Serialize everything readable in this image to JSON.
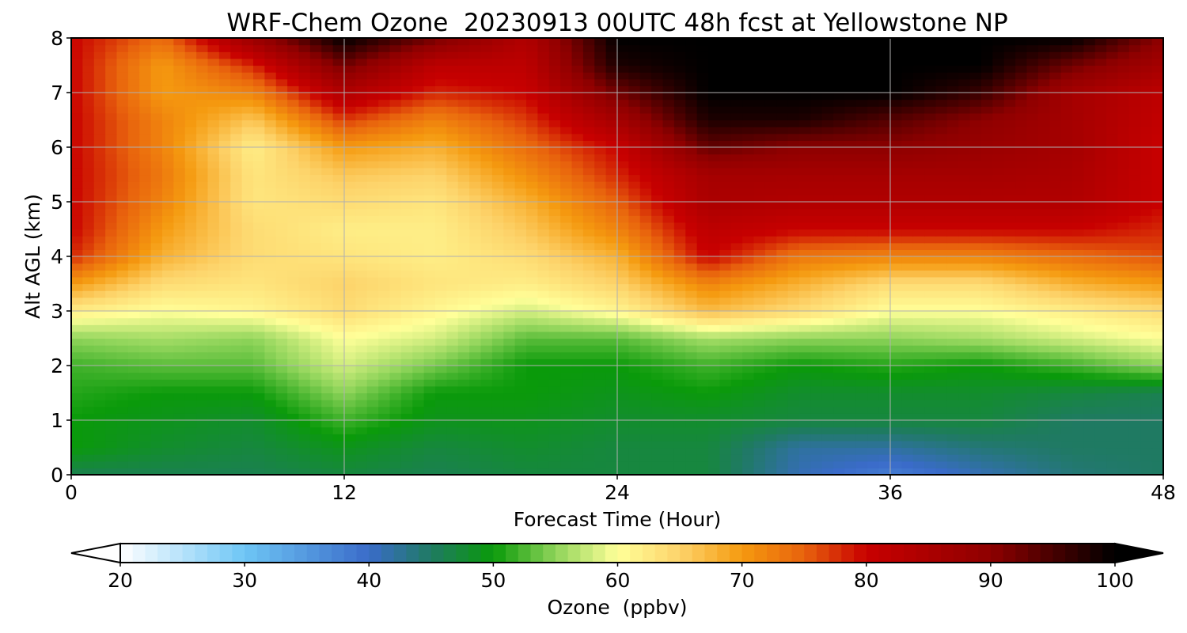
{
  "chart_data": {
    "type": "heatmap",
    "title": "WRF-Chem Ozone  20230913 00UTC 48h fcst at Yellowstone NP",
    "xlabel": "Forecast Time (Hour)",
    "ylabel": "Alt AGL (km)",
    "xlim": [
      0,
      48
    ],
    "ylim": [
      0,
      8
    ],
    "x_ticks": [
      0,
      12,
      24,
      36,
      48
    ],
    "y_ticks": [
      0,
      1,
      2,
      3,
      4,
      5,
      6,
      7,
      8
    ],
    "grid": true,
    "x": [
      0,
      4,
      8,
      12,
      16,
      20,
      24,
      28,
      32,
      36,
      40,
      44,
      48
    ],
    "y": [
      0,
      0.5,
      1,
      1.5,
      2,
      2.5,
      3,
      3.5,
      4,
      4.5,
      5,
      5.5,
      6,
      6.5,
      7,
      7.5,
      8
    ],
    "z": [
      [
        46,
        46,
        46,
        47,
        46,
        47,
        47,
        47,
        41,
        38,
        41,
        44,
        45
      ],
      [
        50,
        48,
        47,
        49,
        47,
        48,
        47,
        47,
        42,
        42,
        44,
        45,
        45
      ],
      [
        50,
        49,
        48,
        52,
        49,
        49,
        48,
        48,
        47,
        47,
        47,
        45,
        45
      ],
      [
        51,
        50,
        50,
        55,
        50,
        50,
        49,
        50,
        48,
        48,
        48,
        47,
        46
      ],
      [
        52,
        53,
        53,
        58,
        54,
        50,
        50,
        52,
        50,
        51,
        50,
        52,
        55
      ],
      [
        55,
        56,
        55,
        60,
        58,
        53,
        53,
        56,
        55,
        55,
        56,
        58,
        60
      ],
      [
        62,
        60,
        61,
        64,
        61,
        58,
        61,
        67,
        64,
        60,
        60,
        62,
        64
      ],
      [
        70,
        64,
        63,
        65,
        63,
        62,
        65,
        72,
        68,
        64,
        64,
        68,
        70
      ],
      [
        78,
        68,
        64,
        63,
        62,
        64,
        68,
        80,
        73,
        72,
        72,
        74,
        76
      ],
      [
        80,
        70,
        64,
        62,
        62,
        66,
        72,
        82,
        80,
        80,
        80,
        80,
        78
      ],
      [
        80,
        72,
        63,
        64,
        63,
        68,
        75,
        85,
        84,
        84,
        84,
        84,
        80
      ],
      [
        80,
        73,
        63,
        66,
        65,
        71,
        78,
        86,
        86,
        86,
        86,
        85,
        80
      ],
      [
        80,
        72,
        62,
        70,
        68,
        74,
        80,
        93,
        90,
        90,
        88,
        86,
        80
      ],
      [
        80,
        72,
        66,
        77,
        72,
        77,
        86,
        98,
        98,
        94,
        90,
        86,
        81
      ],
      [
        80,
        70,
        72,
        84,
        78,
        80,
        92,
        100,
        100,
        100,
        96,
        86,
        82
      ],
      [
        80,
        70,
        78,
        92,
        82,
        82,
        98,
        100,
        100,
        100,
        100,
        92,
        86
      ],
      [
        80,
        74,
        88,
        100,
        92,
        84,
        100,
        100,
        100,
        100,
        100,
        100,
        90
      ]
    ],
    "colorbar": {
      "label": "Ozone  (ppbv)",
      "min": 20,
      "max": 100,
      "ticks": [
        20,
        30,
        40,
        50,
        60,
        70,
        80,
        90,
        100
      ],
      "extend": "both",
      "colors": [
        {
          "v": 20,
          "c": "#ffffff"
        },
        {
          "v": 30,
          "c": "#6ec6f5"
        },
        {
          "v": 40,
          "c": "#3a6bc9"
        },
        {
          "v": 45,
          "c": "#1f7a62"
        },
        {
          "v": 50,
          "c": "#0a9a0a"
        },
        {
          "v": 55,
          "c": "#8fd45a"
        },
        {
          "v": 60,
          "c": "#ffff99"
        },
        {
          "v": 65,
          "c": "#fdd36a"
        },
        {
          "v": 70,
          "c": "#f59a0f"
        },
        {
          "v": 75,
          "c": "#e8620d"
        },
        {
          "v": 80,
          "c": "#c80000"
        },
        {
          "v": 90,
          "c": "#8e0000"
        },
        {
          "v": 100,
          "c": "#000000"
        }
      ]
    }
  }
}
